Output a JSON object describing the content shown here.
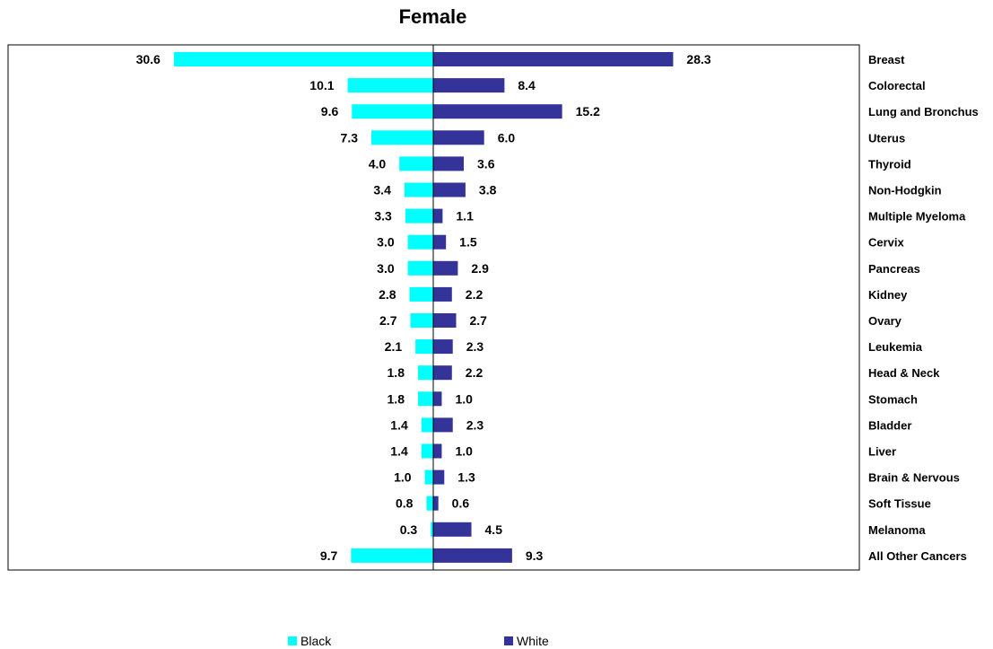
{
  "chart_data": {
    "type": "bar",
    "orientation": "horizontal",
    "layout": "back-to-back",
    "title": "Female",
    "categories": [
      "Breast",
      "Colorectal",
      "Lung and Bronchus",
      "Uterus",
      "Thyroid",
      "Non-Hodgkin",
      "Multiple Myeloma",
      "Cervix",
      "Pancreas",
      "Kidney",
      "Ovary",
      "Leukemia",
      "Head & Neck",
      "Stomach",
      "Bladder",
      "Liver",
      "Brain & Nervous",
      "Soft Tissue",
      "Melanoma",
      "All Other Cancers"
    ],
    "series": [
      {
        "name": "Black",
        "color": "#00ffff",
        "direction": "left",
        "values": [
          30.6,
          10.1,
          9.6,
          7.3,
          4.0,
          3.4,
          3.3,
          3.0,
          3.0,
          2.8,
          2.7,
          2.1,
          1.8,
          1.8,
          1.4,
          1.4,
          1.0,
          0.8,
          0.3,
          9.7
        ]
      },
      {
        "name": "White",
        "color": "#333399",
        "direction": "right",
        "values": [
          28.3,
          8.4,
          15.2,
          6.0,
          3.6,
          3.8,
          1.1,
          1.5,
          2.9,
          2.2,
          2.7,
          2.3,
          2.2,
          1.0,
          2.3,
          1.0,
          1.3,
          0.6,
          4.5,
          9.3
        ]
      }
    ],
    "value_format": "0.0",
    "legend": "bottom",
    "grid": false
  }
}
